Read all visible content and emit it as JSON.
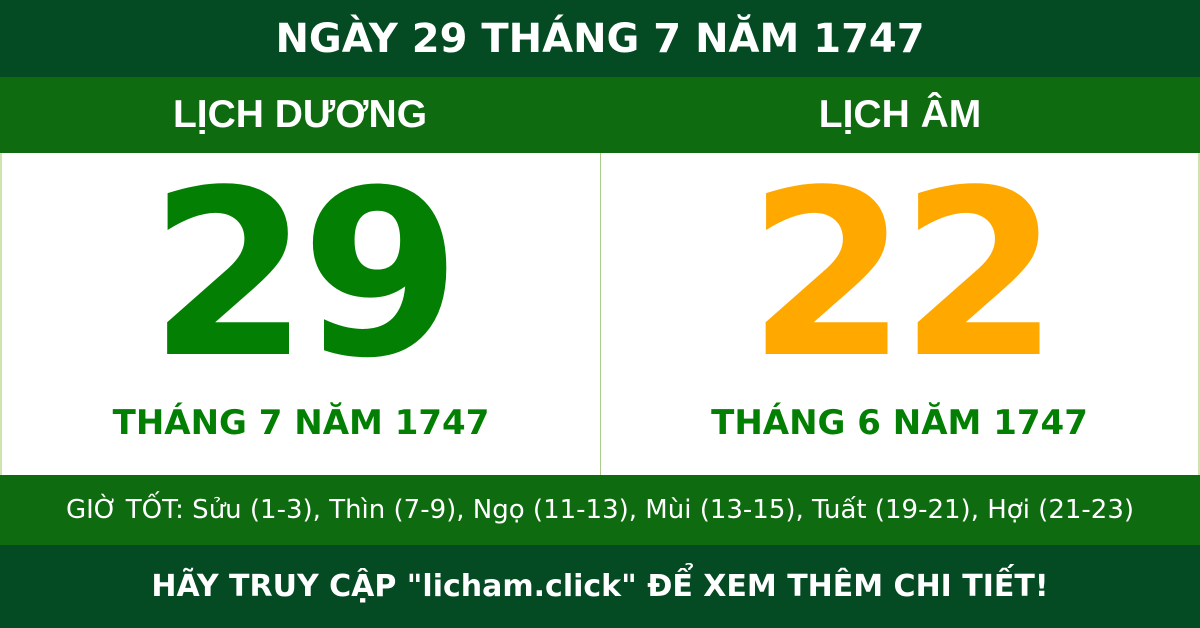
{
  "title": "NGÀY 29 THÁNG 7 NĂM 1747",
  "solar": {
    "label": "LỊCH DƯƠNG",
    "day": "29",
    "month_year": "THÁNG 7 NĂM 1747",
    "color": "#038003"
  },
  "lunar": {
    "label": "LỊCH ÂM",
    "day": "22",
    "month_year": "THÁNG 6 NĂM 1747",
    "color": "#ffa800"
  },
  "good_hours": "GIỜ TỐT: Sửu (1-3), Thìn (7-9), Ngọ (11-13), Mùi (13-15), Tuất (19-21), Hợi (21-23)",
  "footer": "HÃY TRUY CẬP \"licham.click\" ĐỂ XEM THÊM CHI TIẾT!",
  "colors": {
    "header": "#044a22",
    "band": "#0e6b10"
  }
}
